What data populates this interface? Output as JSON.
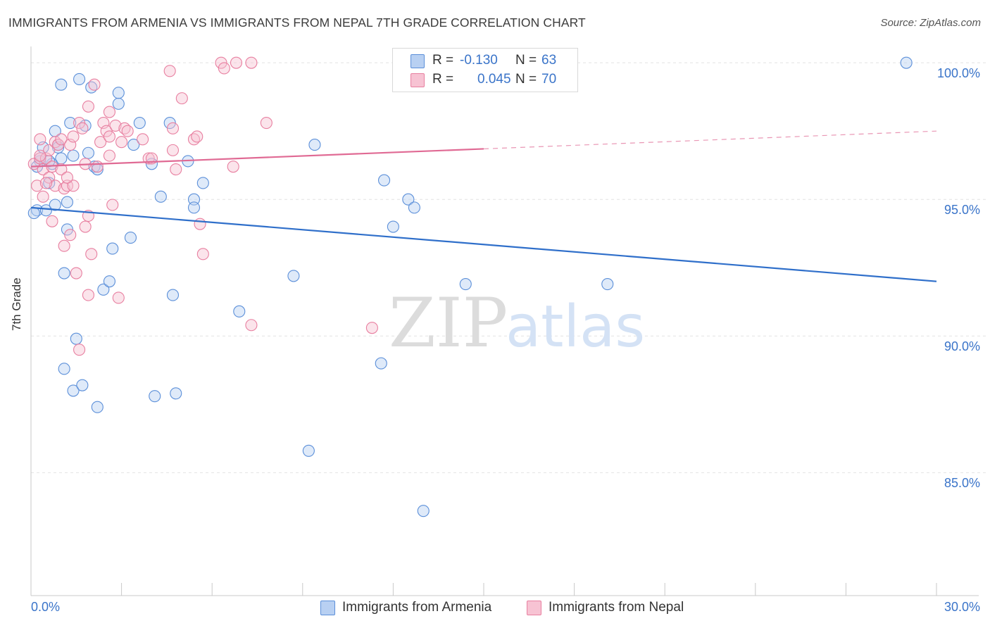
{
  "title": "IMMIGRANTS FROM ARMENIA VS IMMIGRANTS FROM NEPAL 7TH GRADE CORRELATION CHART",
  "source": "Source: ZipAtlas.com",
  "watermark": {
    "zip": "ZIP",
    "atlas": "atlas"
  },
  "colors": {
    "armenia": "#5b8fd9",
    "armenia_fill": "#b8d0f2",
    "armenia_line": "#2f6fca",
    "nepal": "#e87fa0",
    "nepal_fill": "#f7c3d3",
    "nepal_line": "#e06a94",
    "tick_text": "#3a74c9",
    "grid": "#e2e2e2"
  },
  "legend": {
    "rows": [
      {
        "r_label": "R =",
        "r_value": "-0.130",
        "n_label": "N =",
        "n_value": "63"
      },
      {
        "r_label": "R =",
        "r_value": "0.045",
        "n_label": "N =",
        "n_value": "70"
      }
    ]
  },
  "bottom_legend": {
    "armenia": "Immigrants from Armenia",
    "nepal": "Immigrants from Nepal"
  },
  "chart_data": {
    "type": "scatter",
    "xlabel": "",
    "ylabel": "7th Grade",
    "x_tick_labels": {
      "min": "0.0%",
      "max": "30.0%"
    },
    "y_tick_labels": [
      "100.0%",
      "95.0%",
      "90.0%",
      "85.0%"
    ],
    "xlim": [
      0,
      30
    ],
    "ylim": [
      80.5,
      100.7
    ],
    "grid": true,
    "series": [
      {
        "name": "Immigrants from Armenia",
        "points": [
          [
            0.2,
            94.6
          ],
          [
            0.3,
            96.4
          ],
          [
            0.6,
            95.6
          ],
          [
            0.4,
            96.9
          ],
          [
            0.7,
            96.3
          ],
          [
            0.8,
            97.5
          ],
          [
            0.9,
            97.0
          ],
          [
            1.0,
            96.5
          ],
          [
            1.0,
            99.2
          ],
          [
            1.2,
            94.9
          ],
          [
            1.2,
            93.9
          ],
          [
            1.1,
            92.3
          ],
          [
            1.3,
            97.8
          ],
          [
            1.4,
            96.6
          ],
          [
            1.5,
            89.9
          ],
          [
            1.4,
            88.0
          ],
          [
            1.6,
            99.4
          ],
          [
            1.7,
            88.2
          ],
          [
            1.8,
            97.7
          ],
          [
            1.9,
            96.7
          ],
          [
            2.0,
            99.1
          ],
          [
            2.1,
            96.2
          ],
          [
            2.2,
            96.1
          ],
          [
            2.2,
            87.4
          ],
          [
            2.4,
            91.7
          ],
          [
            2.6,
            92.0
          ],
          [
            2.7,
            93.2
          ],
          [
            2.9,
            98.5
          ],
          [
            2.9,
            98.9
          ],
          [
            3.3,
            93.6
          ],
          [
            3.4,
            97.0
          ],
          [
            3.6,
            97.8
          ],
          [
            4.0,
            96.3
          ],
          [
            4.3,
            95.1
          ],
          [
            4.6,
            97.8
          ],
          [
            4.7,
            91.5
          ],
          [
            4.8,
            87.9
          ],
          [
            5.2,
            96.4
          ],
          [
            5.4,
            95.0
          ],
          [
            5.4,
            94.7
          ],
          [
            5.7,
            95.6
          ],
          [
            6.9,
            90.9
          ],
          [
            8.7,
            92.2
          ],
          [
            9.2,
            85.8
          ],
          [
            9.4,
            97.0
          ],
          [
            11.6,
            89.0
          ],
          [
            11.7,
            95.7
          ],
          [
            12.0,
            94.0
          ],
          [
            12.5,
            95.0
          ],
          [
            12.7,
            94.7
          ],
          [
            13.0,
            83.6
          ],
          [
            14.4,
            91.9
          ],
          [
            19.1,
            91.9
          ],
          [
            29.0,
            100.0
          ],
          [
            0.6,
            96.4
          ],
          [
            0.9,
            96.9
          ],
          [
            4.1,
            87.8
          ],
          [
            0.2,
            96.2
          ],
          [
            0.5,
            94.6
          ],
          [
            1.1,
            88.8
          ],
          [
            0.3,
            96.5
          ],
          [
            0.1,
            94.5
          ],
          [
            0.8,
            94.8
          ]
        ]
      },
      {
        "name": "Immigrants from Nepal",
        "points": [
          [
            0.1,
            96.3
          ],
          [
            0.2,
            95.5
          ],
          [
            0.3,
            96.5
          ],
          [
            0.3,
            97.2
          ],
          [
            0.4,
            96.1
          ],
          [
            0.4,
            95.1
          ],
          [
            0.5,
            96.5
          ],
          [
            0.6,
            96.8
          ],
          [
            0.6,
            95.8
          ],
          [
            0.7,
            96.2
          ],
          [
            0.7,
            94.2
          ],
          [
            0.8,
            95.5
          ],
          [
            0.8,
            97.1
          ],
          [
            0.9,
            97.0
          ],
          [
            1.0,
            97.2
          ],
          [
            1.0,
            96.1
          ],
          [
            1.1,
            95.4
          ],
          [
            1.1,
            93.3
          ],
          [
            1.2,
            95.5
          ],
          [
            1.3,
            97.0
          ],
          [
            1.3,
            93.7
          ],
          [
            1.4,
            97.3
          ],
          [
            1.4,
            95.5
          ],
          [
            1.5,
            92.3
          ],
          [
            1.6,
            97.8
          ],
          [
            1.6,
            89.5
          ],
          [
            1.7,
            97.6
          ],
          [
            1.8,
            96.3
          ],
          [
            1.8,
            94.0
          ],
          [
            1.9,
            94.4
          ],
          [
            1.9,
            91.5
          ],
          [
            2.0,
            93.0
          ],
          [
            2.1,
            99.2
          ],
          [
            2.2,
            96.2
          ],
          [
            2.3,
            97.1
          ],
          [
            2.4,
            97.8
          ],
          [
            2.5,
            97.5
          ],
          [
            2.6,
            97.3
          ],
          [
            2.6,
            96.6
          ],
          [
            2.7,
            94.8
          ],
          [
            2.8,
            97.7
          ],
          [
            2.9,
            91.4
          ],
          [
            3.0,
            97.1
          ],
          [
            3.1,
            97.6
          ],
          [
            3.2,
            97.5
          ],
          [
            3.7,
            97.2
          ],
          [
            3.9,
            96.5
          ],
          [
            4.0,
            96.5
          ],
          [
            4.6,
            99.7
          ],
          [
            4.7,
            97.6
          ],
          [
            4.7,
            96.8
          ],
          [
            4.8,
            96.1
          ],
          [
            5.0,
            98.7
          ],
          [
            5.4,
            97.2
          ],
          [
            5.5,
            97.3
          ],
          [
            5.6,
            94.1
          ],
          [
            5.7,
            93.0
          ],
          [
            6.3,
            100.0
          ],
          [
            6.4,
            99.8
          ],
          [
            6.7,
            96.2
          ],
          [
            6.8,
            100.0
          ],
          [
            7.3,
            100.0
          ],
          [
            7.3,
            90.4
          ],
          [
            7.8,
            97.8
          ],
          [
            11.3,
            90.3
          ],
          [
            2.6,
            98.2
          ],
          [
            1.9,
            98.4
          ],
          [
            0.5,
            95.6
          ],
          [
            1.2,
            95.8
          ],
          [
            0.3,
            96.6
          ]
        ]
      }
    ],
    "trend_lines": [
      {
        "series": "Immigrants from Armenia",
        "x": [
          0,
          30
        ],
        "y": [
          94.7,
          92.0
        ],
        "dashed_from": null
      },
      {
        "series": "Immigrants from Nepal",
        "x": [
          0,
          30
        ],
        "y": [
          96.2,
          97.5
        ],
        "dashed_from": 15
      }
    ]
  }
}
